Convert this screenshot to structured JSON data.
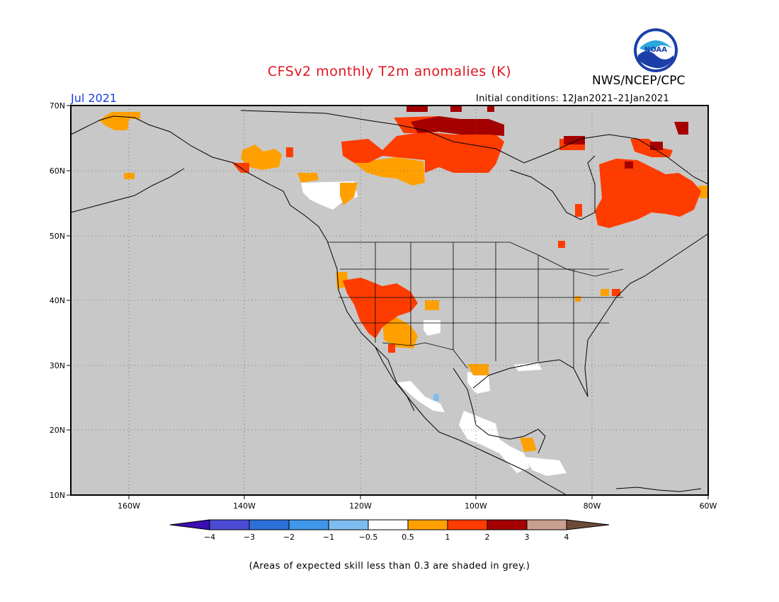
{
  "header": {
    "title": "CFSv2 monthly T2m anomalies (K)",
    "org": "NWS/NCEP/CPC",
    "month": "Jul 2021",
    "initial_conditions": "Initial conditions: 12Jan2021–21Jan2021",
    "logo_text": "NOAA"
  },
  "map": {
    "lon_range": [
      -170,
      -60
    ],
    "lat_range": [
      10,
      70
    ],
    "lat_labels": [
      "70N",
      "60N",
      "50N",
      "40N",
      "30N",
      "20N",
      "10N"
    ],
    "lon_labels": [
      "160W",
      "140W",
      "120W",
      "100W",
      "80W",
      "60W"
    ],
    "grid": "dotted",
    "background": "#c8c8c8"
  },
  "legend": {
    "ticks": [
      "−4",
      "−3",
      "−2",
      "−1",
      "−0.5",
      "0.5",
      "1",
      "2",
      "3",
      "4"
    ],
    "colors": [
      "#3a0fb0",
      "#4b4bd6",
      "#2c6fd8",
      "#4096ea",
      "#7fbdf0",
      "#ffffff",
      "#ffa000",
      "#ff3c00",
      "#a50000",
      "#c8a090",
      "#6e4a3a"
    ]
  },
  "footnote": "(Areas of expected skill less than 0.3 are shaded in grey.)"
}
